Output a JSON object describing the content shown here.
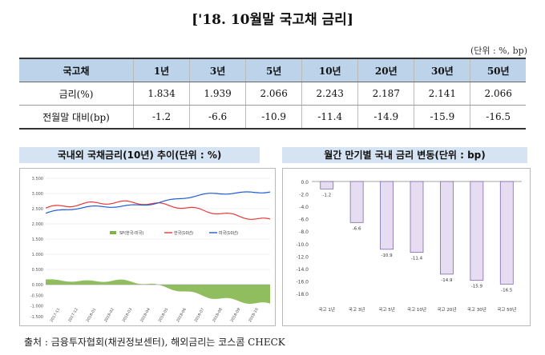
{
  "title": "['18. 10월말 국고채 금리]",
  "unit": "(단위 : %, bp)",
  "table": {
    "headers": [
      "국고채",
      "1년",
      "3년",
      "5년",
      "10년",
      "20년",
      "30년",
      "50년"
    ],
    "rows": [
      {
        "label": "금리(%)",
        "values": [
          "1.834",
          "1.939",
          "2.066",
          "2.243",
          "2.187",
          "2.141",
          "2.066"
        ]
      },
      {
        "label": "전월말 대비(bp)",
        "values": [
          "-1.2",
          "-6.6",
          "-10.9",
          "-11.4",
          "-14.9",
          "-15.9",
          "-16.5"
        ]
      }
    ]
  },
  "left_chart": {
    "title": "국내외 국채금리(10년) 추이(단위 : %)",
    "y_ticks_top": [
      "3.500",
      "3.000",
      "2.500",
      "2.000",
      "1.500",
      "1.000",
      "0.500",
      "0.000"
    ],
    "y_ticks_bottom": [
      "0.000",
      "-0.500",
      "-1.000",
      "-1.500"
    ],
    "x_ticks": [
      "2017-11",
      "2017-12",
      "2018-01",
      "2018-02",
      "2018-03",
      "2018-04",
      "2018-05",
      "2018-06",
      "2018-07",
      "2018-08",
      "2018-09",
      "2018-10"
    ],
    "legend": [
      {
        "label": "SP(한국-미국)",
        "color": "#7cb342"
      },
      {
        "label": "한국(10년)",
        "color": "#e53935"
      },
      {
        "label": "미국(10년)",
        "color": "#1e5bd6"
      }
    ]
  },
  "chart_data": {
    "type": "bar",
    "title": "월간 만기별 국내 금리 변동(단위 : bp)",
    "categories": [
      "국고 1년",
      "국고 3년",
      "국고 5년",
      "국고 10년",
      "국고 20년",
      "국고 30년",
      "국고 50년"
    ],
    "values": [
      -1.2,
      -6.6,
      -10.9,
      -11.4,
      -14.9,
      -15.9,
      -16.5
    ],
    "ylim": [
      -18,
      0
    ],
    "y_ticks": [
      "0.0",
      "-2.0",
      "-4.0",
      "-6.0",
      "-8.0",
      "-10.0",
      "-12.0",
      "-14.0",
      "-16.0",
      "-18.0"
    ],
    "bar_color": "#e6ddf2",
    "bar_edge": "#7e6aa8"
  },
  "source": "출처 : 금융투자협회(채권정보센터), 해외금리는 코스콤 CHECK"
}
